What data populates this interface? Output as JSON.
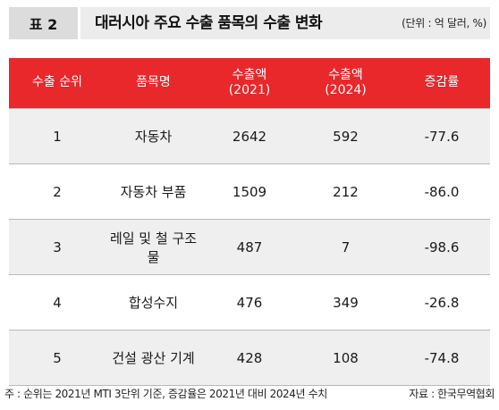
{
  "header": {
    "tag": "표 2",
    "title": "대러시아 주요 수출 품목의 수출 변화",
    "unit": "(단위 : 억 달러, %)"
  },
  "table": {
    "columns": {
      "rank": "수출 순위",
      "item": "품목명",
      "export2021_line1": "수출액",
      "export2021_line2": "(2021)",
      "export2024_line1": "수출액",
      "export2024_line2": "(2024)",
      "change": "증감률"
    },
    "rows": [
      {
        "rank": "1",
        "item": "자동차",
        "v2021": "2642",
        "v2024": "592",
        "change": "-77.6"
      },
      {
        "rank": "2",
        "item": "자동차 부품",
        "v2021": "1509",
        "v2024": "212",
        "change": "-86.0"
      },
      {
        "rank": "3",
        "item": "레일 및 철 구조물",
        "v2021": "487",
        "v2024": "7",
        "change": "-98.6"
      },
      {
        "rank": "4",
        "item": "합성수지",
        "v2021": "476",
        "v2024": "349",
        "change": "-26.8"
      },
      {
        "rank": "5",
        "item": "건설 광산 기계",
        "v2021": "428",
        "v2024": "108",
        "change": "-74.8"
      }
    ]
  },
  "footer": {
    "note": "주 : 순위는 2021년 MTI 3단위 기준, 증감율은 2021년 대비 2024년 수치",
    "source": "자료 : 한국무역협회"
  },
  "colors": {
    "header_red": "#e8282b",
    "stripe_gray": "#efefef",
    "tag_gray": "#dcdcdc",
    "title_gray": "#ececec"
  }
}
